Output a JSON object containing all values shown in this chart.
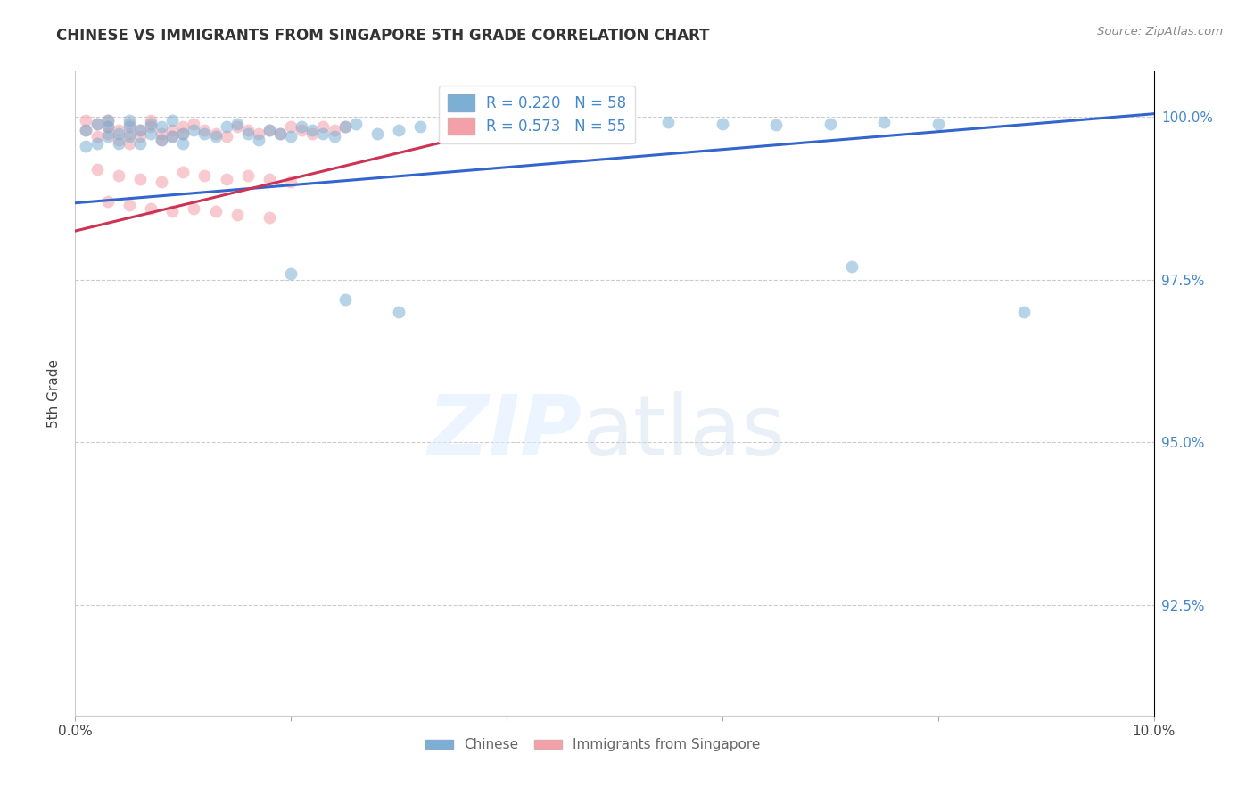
{
  "title": "CHINESE VS IMMIGRANTS FROM SINGAPORE 5TH GRADE CORRELATION CHART",
  "source": "Source: ZipAtlas.com",
  "ylabel": "5th Grade",
  "y_tick_labels": [
    "100.0%",
    "97.5%",
    "95.0%",
    "92.5%"
  ],
  "y_tick_values": [
    1.0,
    0.975,
    0.95,
    0.925
  ],
  "xlim": [
    0.0,
    0.1
  ],
  "ylim": [
    0.908,
    1.007
  ],
  "legend_blue_label": "R = 0.220   N = 58",
  "legend_pink_label": "R = 0.573   N = 55",
  "blue_color": "#7BAFD4",
  "pink_color": "#F4A0A8",
  "blue_line_color": "#3366CC",
  "pink_line_color": "#CC3355",
  "background_color": "#FFFFFF",
  "dot_size": 100,
  "alpha": 0.55,
  "blue_trend_x": [
    0.0,
    0.1
  ],
  "blue_trend_y": [
    0.9868,
    1.0005
  ],
  "pink_trend_x": [
    0.0,
    0.035
  ],
  "pink_trend_y": [
    0.9825,
    0.9965
  ],
  "chinese_x": [
    0.001,
    0.001,
    0.002,
    0.002,
    0.003,
    0.003,
    0.003,
    0.004,
    0.004,
    0.005,
    0.005,
    0.005,
    0.006,
    0.006,
    0.007,
    0.007,
    0.008,
    0.008,
    0.009,
    0.009,
    0.01,
    0.01,
    0.011,
    0.012,
    0.013,
    0.014,
    0.015,
    0.016,
    0.017,
    0.018,
    0.019,
    0.02,
    0.021,
    0.022,
    0.023,
    0.024,
    0.025,
    0.026,
    0.028,
    0.03,
    0.032,
    0.035,
    0.038,
    0.04,
    0.043,
    0.046,
    0.05,
    0.055,
    0.06,
    0.065,
    0.07,
    0.075,
    0.08,
    0.02,
    0.025,
    0.03,
    0.072,
    0.088
  ],
  "chinese_y": [
    0.9955,
    0.998,
    0.996,
    0.999,
    0.997,
    0.9985,
    0.9995,
    0.9975,
    0.996,
    0.9985,
    0.997,
    0.9995,
    0.996,
    0.998,
    0.9975,
    0.999,
    0.9965,
    0.9985,
    0.997,
    0.9995,
    0.9975,
    0.996,
    0.998,
    0.9975,
    0.997,
    0.9985,
    0.999,
    0.9975,
    0.9965,
    0.998,
    0.9975,
    0.997,
    0.9985,
    0.998,
    0.9975,
    0.997,
    0.9985,
    0.999,
    0.9975,
    0.998,
    0.9985,
    0.999,
    0.9985,
    0.9988,
    0.999,
    0.9988,
    0.999,
    0.9992,
    0.999,
    0.9988,
    0.999,
    0.9992,
    0.999,
    0.976,
    0.972,
    0.97,
    0.977,
    0.97
  ],
  "singapore_x": [
    0.001,
    0.001,
    0.002,
    0.002,
    0.003,
    0.003,
    0.003,
    0.004,
    0.004,
    0.005,
    0.005,
    0.005,
    0.006,
    0.006,
    0.007,
    0.007,
    0.008,
    0.008,
    0.009,
    0.009,
    0.01,
    0.01,
    0.011,
    0.012,
    0.013,
    0.014,
    0.015,
    0.016,
    0.017,
    0.018,
    0.019,
    0.02,
    0.021,
    0.022,
    0.023,
    0.024,
    0.025,
    0.002,
    0.004,
    0.006,
    0.008,
    0.01,
    0.012,
    0.014,
    0.016,
    0.018,
    0.02,
    0.003,
    0.005,
    0.007,
    0.009,
    0.011,
    0.013,
    0.015,
    0.018
  ],
  "singapore_y": [
    0.998,
    0.9995,
    0.997,
    0.999,
    0.9975,
    0.9985,
    0.9995,
    0.9965,
    0.998,
    0.9975,
    0.999,
    0.996,
    0.998,
    0.997,
    0.9985,
    0.9995,
    0.9975,
    0.9965,
    0.998,
    0.997,
    0.9985,
    0.9975,
    0.999,
    0.998,
    0.9975,
    0.997,
    0.9985,
    0.998,
    0.9975,
    0.998,
    0.9975,
    0.9985,
    0.998,
    0.9975,
    0.9985,
    0.998,
    0.9985,
    0.992,
    0.991,
    0.9905,
    0.99,
    0.9915,
    0.991,
    0.9905,
    0.991,
    0.9905,
    0.99,
    0.987,
    0.9865,
    0.986,
    0.9855,
    0.986,
    0.9855,
    0.985,
    0.9845
  ]
}
